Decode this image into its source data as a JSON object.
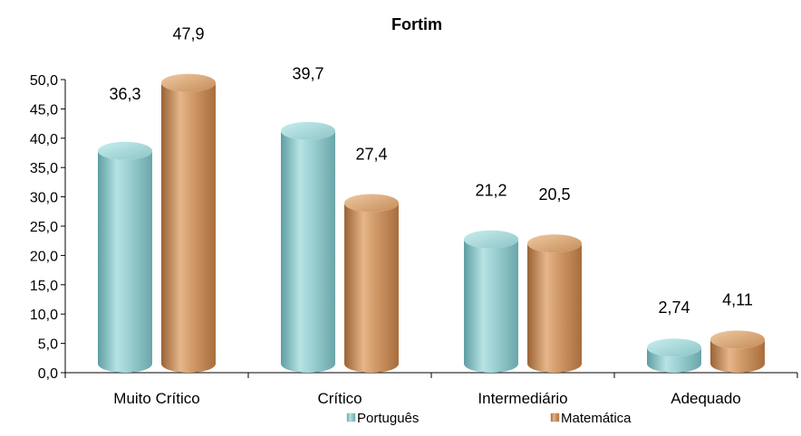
{
  "chart_data": {
    "type": "bar",
    "title": "Fortim",
    "categories": [
      "Muito Crítico",
      "Crítico",
      "Intermediário",
      "Adequado"
    ],
    "series": [
      {
        "name": "Português",
        "values": [
          36.3,
          39.7,
          21.2,
          2.74
        ],
        "labels": [
          "36,3",
          "39,7",
          "21,2",
          "2,74"
        ],
        "color": "#8fc7c9"
      },
      {
        "name": "Matemática",
        "values": [
          47.9,
          27.4,
          20.5,
          4.11
        ],
        "labels": [
          "47,9",
          "27,4",
          "20,5",
          "4,11"
        ],
        "color": "#c99668"
      }
    ],
    "ylim": [
      0,
      50
    ],
    "yticks": [
      "0,0",
      "5,0",
      "10,0",
      "15,0",
      "20,0",
      "25,0",
      "30,0",
      "35,0",
      "40,0",
      "45,0",
      "50,0"
    ],
    "xlabel": "",
    "ylabel": "",
    "grid": false,
    "legend_position": "bottom"
  }
}
